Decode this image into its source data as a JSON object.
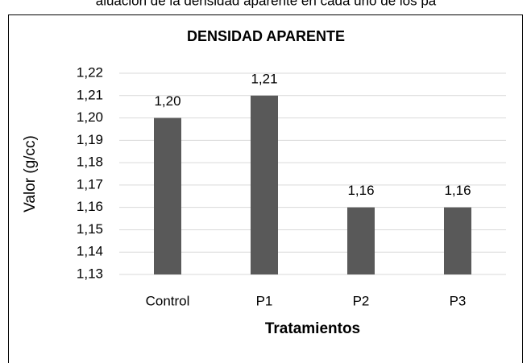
{
  "caption": "aluación de la densidad aparente en cada uno de los pa",
  "chart_data": {
    "type": "bar",
    "title": "DENSIDAD APARENTE",
    "x_label": "Tratamientos",
    "y_label": "Valor (g/cc)",
    "categories": [
      "Control",
      "P1",
      "P2",
      "P3"
    ],
    "values": [
      1.2,
      1.21,
      1.16,
      1.16
    ],
    "value_labels": [
      "1,20",
      "1,21",
      "1,16",
      "1,16"
    ],
    "color": "#595959",
    "ylim": [
      1.13,
      1.22
    ],
    "yticks": [
      {
        "value": 1.13,
        "label": "1,13"
      },
      {
        "value": 1.14,
        "label": "1,14"
      },
      {
        "value": 1.15,
        "label": "1,15"
      },
      {
        "value": 1.16,
        "label": "1,16"
      },
      {
        "value": 1.17,
        "label": "1,17"
      },
      {
        "value": 1.18,
        "label": "1,18"
      },
      {
        "value": 1.19,
        "label": "1,19"
      },
      {
        "value": 1.2,
        "label": "1,20"
      },
      {
        "value": 1.21,
        "label": "1,21"
      },
      {
        "value": 1.22,
        "label": "1,22"
      }
    ],
    "grid": true
  }
}
